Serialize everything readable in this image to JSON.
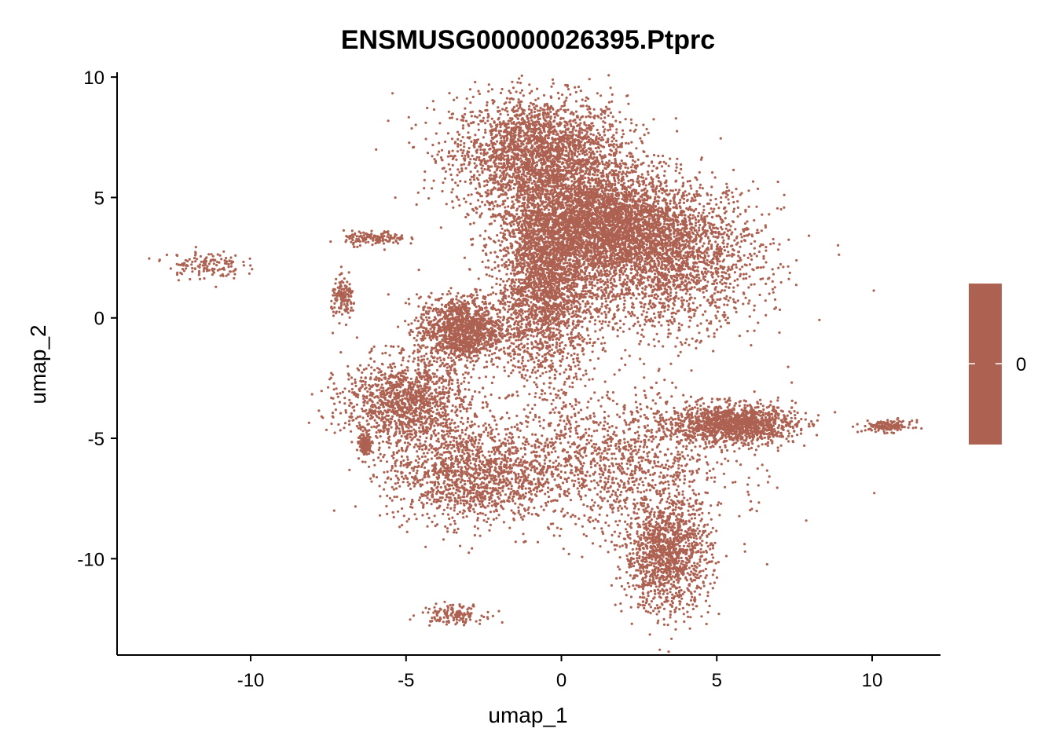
{
  "chart_data": {
    "type": "scatter",
    "title": "ENSMUSG00000026395.Ptprc",
    "xlabel": "umap_1",
    "ylabel": "umap_2",
    "xlim": [
      -14.3,
      12.2
    ],
    "ylim": [
      -14.0,
      10.2
    ],
    "x_ticks": [
      -10,
      -5,
      0,
      5,
      10
    ],
    "x_tick_labels": [
      "-10",
      "-5",
      "0",
      "5",
      "10"
    ],
    "y_ticks": [
      10,
      5,
      0,
      -5,
      -10
    ],
    "y_tick_labels": [
      "10",
      "5",
      "0",
      "-5",
      "-10"
    ],
    "point_color": "#AD6151",
    "grid": false,
    "legend": {
      "type": "colorbar",
      "position": "right",
      "color": "#AD6151",
      "labels": [
        "0"
      ]
    },
    "clusters": [
      {
        "center": [
          -0.7,
          6.8
        ],
        "spread": [
          1.4,
          1.2
        ],
        "density": "high"
      },
      {
        "center": [
          3.2,
          2.5
        ],
        "spread": [
          1.6,
          1.5
        ],
        "density": "high"
      },
      {
        "center": [
          1.2,
          4.0
        ],
        "spread": [
          1.3,
          1.0
        ],
        "density": "high"
      },
      {
        "center": [
          -0.5,
          1.5
        ],
        "spread": [
          0.8,
          2.0
        ],
        "density": "high"
      },
      {
        "center": [
          -5.0,
          -3.5
        ],
        "spread": [
          1.0,
          0.9
        ],
        "density": "medium"
      },
      {
        "center": [
          -3.2,
          -0.5
        ],
        "spread": [
          0.7,
          0.7
        ],
        "density": "medium"
      },
      {
        "center": [
          1.5,
          -6.0
        ],
        "spread": [
          2.0,
          1.4
        ],
        "density": "medium"
      },
      {
        "center": [
          3.4,
          -9.8
        ],
        "spread": [
          0.7,
          1.2
        ],
        "density": "medium"
      },
      {
        "center": [
          5.5,
          -4.4
        ],
        "spread": [
          1.0,
          0.4
        ],
        "density": "medium"
      },
      {
        "center": [
          -3.0,
          -6.5
        ],
        "spread": [
          1.3,
          1.0
        ],
        "density": "medium"
      },
      {
        "center": [
          -11.5,
          2.2
        ],
        "spread": [
          0.6,
          0.3
        ],
        "density": "low"
      },
      {
        "center": [
          -6.0,
          3.3
        ],
        "spread": [
          0.5,
          0.15
        ],
        "density": "low"
      },
      {
        "center": [
          -7.0,
          0.8
        ],
        "spread": [
          0.2,
          0.4
        ],
        "density": "low"
      },
      {
        "center": [
          -3.5,
          -12.3
        ],
        "spread": [
          0.5,
          0.2
        ],
        "density": "low"
      },
      {
        "center": [
          10.5,
          -4.5
        ],
        "spread": [
          0.4,
          0.12
        ],
        "density": "low"
      },
      {
        "center": [
          -6.3,
          -5.3
        ],
        "spread": [
          0.1,
          0.2
        ],
        "density": "low"
      }
    ]
  }
}
